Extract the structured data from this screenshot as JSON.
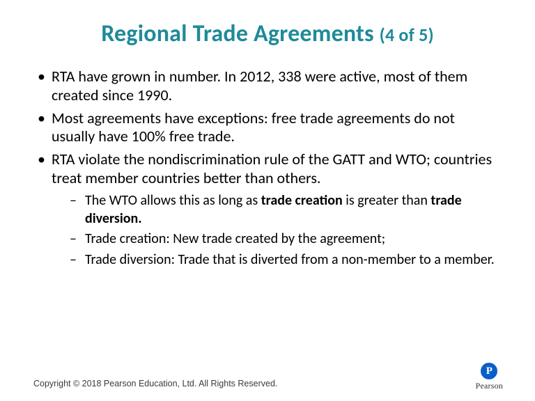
{
  "title_main": "Regional Trade Agreements ",
  "title_part": "(4 of 5)",
  "bullets": {
    "b1": "RTA have grown in number.  In 2012, 338 were active, most of them created since 1990.",
    "b2": "Most agreements have exceptions:  free trade agreements do not usually have 100% free trade.",
    "b3": "RTA violate the nondiscrimination rule of the GATT and WTO;  countries treat member countries better than others.",
    "s1_pre": "The WTO allows this as long as ",
    "s1_bold1": "trade creation",
    "s1_mid": " is greater than ",
    "s1_bold2": "trade diversion.",
    "s2": "Trade creation: New trade created by the agreement;",
    "s3": "Trade diversion:  Trade that is diverted from a non-member to a member."
  },
  "footer": "Copyright © 2018 Pearson Education, Ltd. All Rights Reserved.",
  "logo": {
    "letter": "P",
    "name": "Pearson"
  },
  "colors": {
    "title": "#1f8a9a",
    "text": "#000000",
    "logo_bg": "#0a5ec9"
  }
}
